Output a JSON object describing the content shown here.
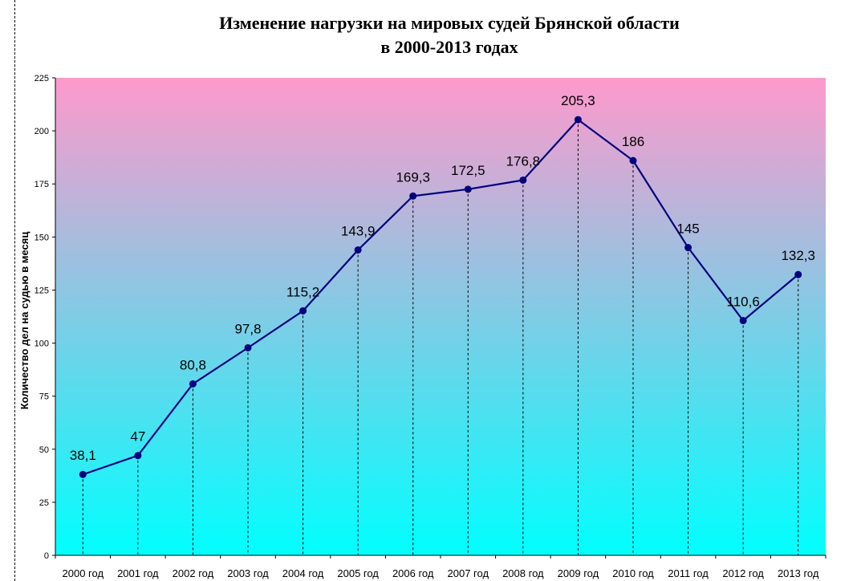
{
  "chart_data": {
    "type": "line",
    "title_line1": "Изменение нагрузки на мировых судей Брянской области",
    "title_line2": "в 2000-2013 годах",
    "xlabel": "",
    "ylabel": "Количество дел на судью в месяц",
    "ylim": [
      0,
      225
    ],
    "y_ticks": [
      0,
      25,
      50,
      75,
      100,
      125,
      150,
      175,
      200,
      225
    ],
    "categories": [
      "2000 год",
      "2001 год",
      "2002 год",
      "2003 год",
      "2004 год",
      "2005 год",
      "2006 год",
      "2007 год",
      "2008 год",
      "2009 год",
      "2010 год",
      "2011 год",
      "2012 год",
      "2013 год"
    ],
    "series": [
      {
        "values": [
          38.1,
          47,
          80.8,
          97.8,
          115.2,
          143.9,
          169.3,
          172.5,
          176.8,
          205.3,
          186,
          145,
          110.6,
          132.3
        ],
        "labels": [
          "38,1",
          "47",
          "80,8",
          "97,8",
          "115,2",
          "143,9",
          "169,3",
          "172,5",
          "176,8",
          "205,3",
          "186",
          "145",
          "110,6",
          "132,3"
        ],
        "color": "#00007f"
      }
    ],
    "grid": false,
    "drop_lines": true,
    "background_gradient": [
      "#ff99cc",
      "#00ffff"
    ]
  }
}
